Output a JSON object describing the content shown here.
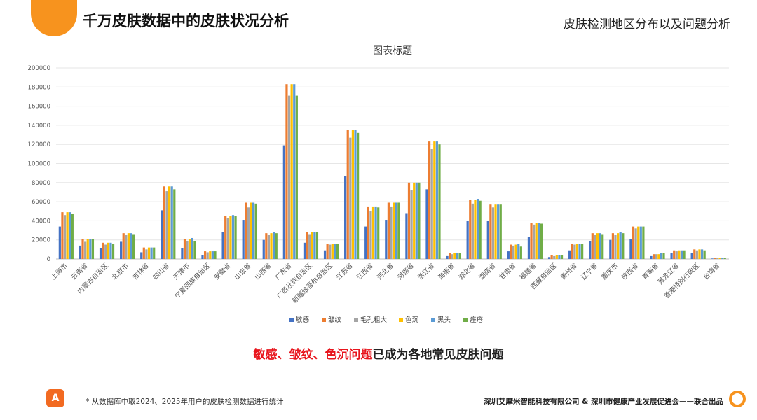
{
  "header": {
    "title": "千万皮肤数据中的皮肤状况分析",
    "subtitle": "皮肤检测地区分布以及问题分析"
  },
  "conclusion": {
    "highlight": "敏感、皱纹、色沉问题",
    "rest": "已成为各地常见皮肤问题"
  },
  "footer": {
    "note": "* 从数据库中取2024、2025年用户的皮肤检测数据进行统计",
    "credit": "深圳艾摩米智能科技有限公司 & 深圳市健康产业发展促进会——联合出品",
    "logo_icon": "am-logo-icon"
  },
  "colors": {
    "accent": "#f7931e",
    "highlight": "#e8141c"
  },
  "chart_data": {
    "type": "bar",
    "title": "图表标题",
    "ylim": [
      0,
      200000
    ],
    "yticks": [
      0,
      20000,
      40000,
      60000,
      80000,
      100000,
      120000,
      140000,
      160000,
      180000,
      200000
    ],
    "grid": true,
    "legend_position": "bottom",
    "categories": [
      "上海市",
      "云南省",
      "内蒙古自治区",
      "北京市",
      "吉林省",
      "四川省",
      "天津市",
      "宁夏回族自治区",
      "安徽省",
      "山东省",
      "山西省",
      "广东省",
      "广西壮族自治区",
      "新疆维吾尔自治区",
      "江苏省",
      "江西省",
      "河北省",
      "河南省",
      "浙江省",
      "海南省",
      "湖北省",
      "湖南省",
      "甘肃省",
      "福建省",
      "西藏自治区",
      "贵州省",
      "辽宁省",
      "重庆市",
      "陕西省",
      "青海省",
      "黑龙江省",
      "香港特别行政区",
      "台湾省"
    ],
    "series": [
      {
        "name": "敏感",
        "color": "#4472c4",
        "values": [
          34000,
          14000,
          11000,
          18000,
          7000,
          51000,
          11000,
          4000,
          28000,
          41000,
          20000,
          119000,
          17000,
          9000,
          87000,
          34000,
          41000,
          48000,
          73000,
          3000,
          40000,
          40000,
          8000,
          23000,
          2000,
          9000,
          19000,
          20000,
          21000,
          3000,
          6000,
          6000,
          500
        ]
      },
      {
        "name": "皱纹",
        "color": "#ed7d31",
        "values": [
          49000,
          21000,
          17000,
          27000,
          12000,
          76000,
          21000,
          8000,
          45000,
          59000,
          27000,
          183000,
          28000,
          16000,
          135000,
          55000,
          59000,
          80000,
          123000,
          6000,
          62000,
          57000,
          15000,
          38000,
          4000,
          16000,
          27000,
          27000,
          34000,
          5000,
          9000,
          10000,
          800
        ]
      },
      {
        "name": "毛孔粗大",
        "color": "#a5a5a5",
        "values": [
          46000,
          18000,
          15000,
          25000,
          10000,
          71000,
          19000,
          7000,
          43000,
          54000,
          25000,
          171000,
          26000,
          15000,
          127000,
          50000,
          55000,
          72000,
          115000,
          5000,
          58000,
          54000,
          14000,
          36000,
          3000,
          15000,
          25000,
          25000,
          32000,
          5000,
          8000,
          9000,
          700
        ]
      },
      {
        "name": "色沉",
        "color": "#ffc000",
        "values": [
          49000,
          21000,
          17000,
          27000,
          12000,
          76000,
          21000,
          8000,
          45000,
          59000,
          27000,
          183000,
          28000,
          16000,
          135000,
          55000,
          59000,
          80000,
          123000,
          6000,
          62000,
          57000,
          15000,
          38000,
          4000,
          16000,
          27000,
          27000,
          34000,
          5000,
          9000,
          10000,
          800
        ]
      },
      {
        "name": "黑头",
        "color": "#5b9bd5",
        "values": [
          49000,
          21000,
          17000,
          27000,
          12000,
          76000,
          22000,
          8000,
          46000,
          59000,
          28000,
          183000,
          28000,
          16000,
          135000,
          55000,
          59000,
          80000,
          123000,
          6000,
          63000,
          57000,
          16000,
          38000,
          4000,
          16000,
          27000,
          28000,
          34000,
          6000,
          9000,
          10000,
          800
        ]
      },
      {
        "name": "痤疮",
        "color": "#70ad47",
        "values": [
          47000,
          21000,
          16000,
          26000,
          12000,
          73000,
          19000,
          8000,
          45000,
          58000,
          27000,
          171000,
          28000,
          16000,
          132000,
          54000,
          59000,
          80000,
          120000,
          6000,
          61000,
          57000,
          13000,
          37000,
          4000,
          16000,
          26000,
          27000,
          34000,
          6000,
          9000,
          9000,
          800
        ]
      }
    ]
  }
}
